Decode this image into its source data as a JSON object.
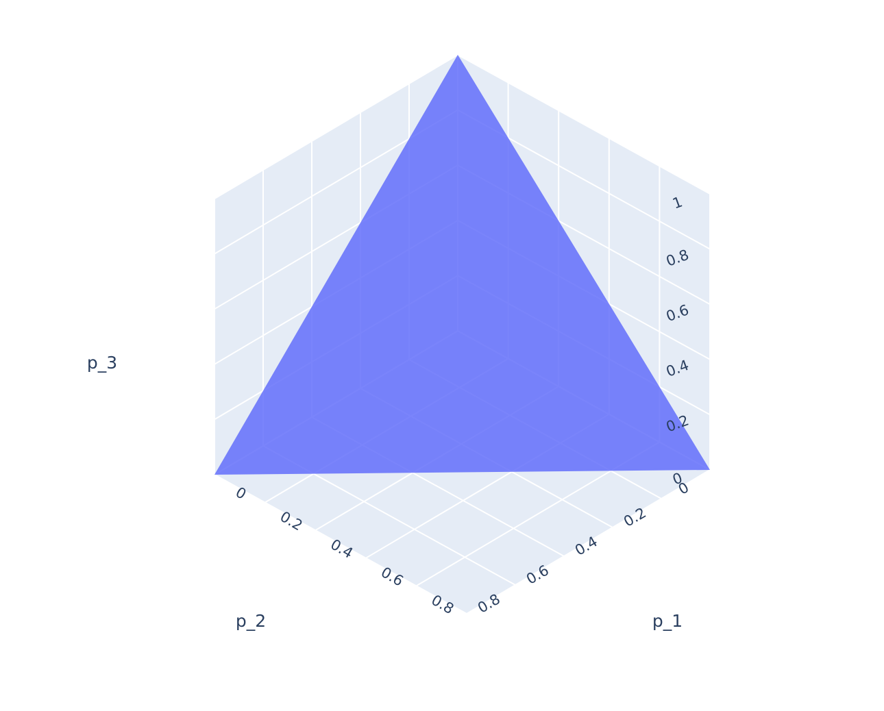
{
  "chart_data": {
    "type": "surface3d",
    "axes": {
      "x": {
        "title": "p_1",
        "range": [
          0,
          1
        ],
        "ticks": [
          "0",
          "0.2",
          "0.4",
          "0.6",
          "0.8"
        ]
      },
      "y": {
        "title": "p_2",
        "range": [
          0,
          1
        ],
        "ticks": [
          "0",
          "0.2",
          "0.4",
          "0.6",
          "0.8"
        ]
      },
      "z": {
        "title": "p_3",
        "range": [
          0,
          1
        ],
        "ticks": [
          "0",
          "0.2",
          "0.4",
          "0.6",
          "0.8",
          "1"
        ]
      }
    },
    "surface": {
      "vertices": [
        {
          "p_1": 1,
          "p_2": 0,
          "p_3": 0
        },
        {
          "p_1": 0,
          "p_2": 1,
          "p_3": 0
        },
        {
          "p_1": 0,
          "p_2": 0,
          "p_3": 1
        }
      ],
      "color": "#636efa",
      "opacity": 0.85
    },
    "grid": true,
    "background_color": "#e5ecf6",
    "grid_color": "#ffffff",
    "legend": "none"
  }
}
